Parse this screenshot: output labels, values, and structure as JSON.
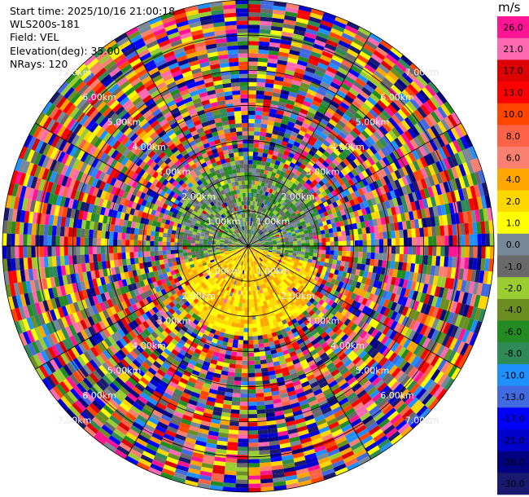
{
  "header": {
    "start_time": "Start time: 2025/10/16 21:00:18",
    "site": "WLS200s-181",
    "field": "Field: VEL",
    "elevation": "Elevation(deg): 35.00",
    "nrays": "NRays: 120"
  },
  "colorbar": {
    "unit": "m/s",
    "ticks": [
      "26.0",
      "21.0",
      "17.0",
      "13.0",
      "10.0",
      "8.0",
      "6.0",
      "4.0",
      "2.0",
      "1.0",
      "0.0",
      "-1.0",
      "-2.0",
      "-4.0",
      "-6.0",
      "-8.0",
      "-10.0",
      "-13.0",
      "-17.0",
      "-21.0",
      "-26.0",
      "-30.0"
    ],
    "colors": [
      "#ff1493",
      "#ff69b4",
      "#dc0000",
      "#ff0000",
      "#ff4500",
      "#ff6347",
      "#fa8072",
      "#ffa500",
      "#ffd700",
      "#ffff00",
      "#778899",
      "#696969",
      "#9acd32",
      "#6b8e23",
      "#228b22",
      "#2e8b57",
      "#1e90ff",
      "#4169e1",
      "#0000ff",
      "#0000cd",
      "#000080",
      "#191970"
    ]
  },
  "chart_data": {
    "type": "heatmap",
    "projection": "polar (PPI)",
    "field": "VEL",
    "unit": "m/s",
    "n_rays": 120,
    "elevation_deg": 35.0,
    "range_rings_km": [
      1.0,
      2.0,
      3.0,
      4.0,
      5.0,
      6.0,
      7.0
    ],
    "ring_labels": [
      "1.00km",
      "2.00km",
      "3.00km",
      "4.00km",
      "5.00km",
      "6.00km",
      "7.00km"
    ],
    "max_range_km": 7.0,
    "pattern": {
      "near_field_north_km": 1.5,
      "near_field_north_values": [
        -2.0,
        -6.0,
        -1.0
      ],
      "near_field_south_km": 1.8,
      "near_field_south_values": [
        2.0,
        4.0,
        1.0
      ],
      "far_field": "noise across all velocity classes"
    }
  }
}
